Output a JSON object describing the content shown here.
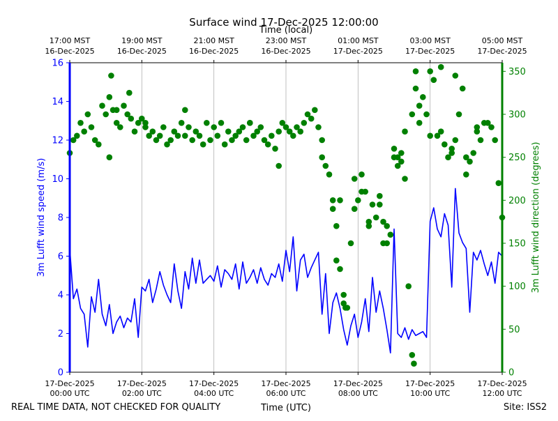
{
  "chart_data": {
    "type": "line+scatter",
    "title": "Surface wind 17-Dec-2025 12:00:00",
    "top_axis_label": "Time (local)",
    "x_label": "Time (UTC)",
    "left_ylabel": "3m Lufft wind speed (m/s)",
    "right_ylabel": "3m Lufft wind direction (degrees)",
    "footer_left": "REAL TIME DATA, NOT CHECKED FOR QUALITY",
    "footer_right": "Site: ISS2",
    "x_range_hours": [
      0,
      12
    ],
    "left_ylim": [
      0,
      16
    ],
    "right_ylim": [
      0,
      360
    ],
    "left_yticks": [
      0,
      2,
      4,
      6,
      8,
      10,
      12,
      14,
      16
    ],
    "right_yticks": [
      0,
      50,
      100,
      150,
      200,
      250,
      300,
      350
    ],
    "bottom_ticks": [
      {
        "hour": 0,
        "line1": "17-Dec-2025",
        "line2": "00:00 UTC"
      },
      {
        "hour": 2,
        "line1": "17-Dec-2025",
        "line2": "02:00 UTC"
      },
      {
        "hour": 4,
        "line1": "17-Dec-2025",
        "line2": "04:00 UTC"
      },
      {
        "hour": 6,
        "line1": "17-Dec-2025",
        "line2": "06:00 UTC"
      },
      {
        "hour": 8,
        "line1": "17-Dec-2025",
        "line2": "08:00 UTC"
      },
      {
        "hour": 10,
        "line1": "17-Dec-2025",
        "line2": "10:00 UTC"
      },
      {
        "hour": 12,
        "line1": "17-Dec-2025",
        "line2": "12:00 UTC"
      }
    ],
    "top_ticks": [
      {
        "hour": 0,
        "line1": "17:00 MST",
        "line2": "16-Dec-2025"
      },
      {
        "hour": 2,
        "line1": "19:00 MST",
        "line2": "16-Dec-2025"
      },
      {
        "hour": 4,
        "line1": "21:00 MST",
        "line2": "16-Dec-2025"
      },
      {
        "hour": 6,
        "line1": "23:00 MST",
        "line2": "16-Dec-2025"
      },
      {
        "hour": 8,
        "line1": "01:00 MST",
        "line2": "17-Dec-2025"
      },
      {
        "hour": 10,
        "line1": "03:00 MST",
        "line2": "17-Dec-2025"
      },
      {
        "hour": 12,
        "line1": "05:00 MST",
        "line2": "17-Dec-2025"
      }
    ],
    "grid": "vertical",
    "colors": {
      "speed": "#0000ff",
      "direction": "#008000",
      "grid": "#b0b0b0",
      "axis": "#000000"
    },
    "series": [
      {
        "name": "wind speed",
        "axis": "left",
        "style": "line",
        "x_hours": [
          0,
          0.1,
          0.2,
          0.3,
          0.4,
          0.5,
          0.6,
          0.7,
          0.8,
          0.9,
          1.0,
          1.1,
          1.2,
          1.3,
          1.4,
          1.5,
          1.6,
          1.7,
          1.8,
          1.9,
          2.0,
          2.1,
          2.2,
          2.3,
          2.4,
          2.5,
          2.6,
          2.7,
          2.8,
          2.9,
          3.0,
          3.1,
          3.2,
          3.3,
          3.4,
          3.5,
          3.6,
          3.7,
          3.8,
          3.9,
          4.0,
          4.1,
          4.2,
          4.3,
          4.4,
          4.5,
          4.6,
          4.7,
          4.8,
          4.9,
          5.0,
          5.1,
          5.2,
          5.3,
          5.4,
          5.5,
          5.6,
          5.7,
          5.8,
          5.9,
          6.0,
          6.1,
          6.2,
          6.3,
          6.4,
          6.5,
          6.6,
          6.7,
          6.8,
          6.9,
          7.0,
          7.1,
          7.2,
          7.3,
          7.4,
          7.5,
          7.6,
          7.7,
          7.8,
          7.9,
          8.0,
          8.1,
          8.2,
          8.3,
          8.4,
          8.5,
          8.6,
          8.7,
          8.8,
          8.9,
          9.0,
          9.1,
          9.2,
          9.3,
          9.4,
          9.5,
          9.6,
          9.7,
          9.8,
          9.9,
          10.0,
          10.1,
          10.2,
          10.3,
          10.4,
          10.5,
          10.6,
          10.7,
          10.8,
          10.9,
          11.0,
          11.1,
          11.2,
          11.3,
          11.4,
          11.5,
          11.6,
          11.7,
          11.8,
          11.9,
          12.0
        ],
        "values": [
          6.4,
          3.8,
          4.3,
          3.3,
          3.0,
          1.3,
          3.9,
          3.1,
          4.8,
          3.0,
          2.4,
          3.5,
          2.0,
          2.6,
          2.9,
          2.3,
          2.8,
          2.6,
          3.8,
          1.8,
          4.4,
          4.2,
          4.8,
          3.6,
          4.3,
          5.2,
          4.5,
          4.0,
          3.6,
          5.6,
          4.2,
          3.3,
          5.2,
          4.3,
          5.9,
          4.6,
          5.8,
          4.6,
          4.8,
          5.0,
          4.7,
          5.5,
          4.4,
          5.3,
          5.1,
          4.8,
          5.6,
          4.3,
          5.7,
          4.6,
          4.9,
          5.3,
          4.6,
          5.4,
          4.8,
          4.5,
          5.1,
          4.9,
          5.6,
          4.7,
          6.3,
          5.2,
          7.0,
          4.2,
          5.8,
          6.1,
          4.9,
          5.4,
          5.8,
          6.2,
          3.0,
          5.1,
          2.0,
          3.6,
          4.1,
          3.3,
          2.2,
          1.4,
          2.4,
          3.0,
          1.8,
          2.6,
          3.8,
          2.1,
          4.9,
          3.1,
          4.2,
          3.3,
          2.2,
          1.0,
          7.4,
          2.0,
          1.8,
          2.3,
          1.7,
          2.2,
          1.9,
          2.0,
          2.1,
          1.8,
          7.8,
          8.5,
          7.4,
          7.0,
          8.2,
          7.6,
          4.4,
          9.5,
          7.2,
          6.7,
          6.4,
          3.1,
          6.2,
          5.8,
          6.3,
          5.6,
          5.0,
          5.7,
          4.6,
          6.2,
          6.0
        ]
      },
      {
        "name": "wind direction",
        "axis": "right",
        "style": "markers",
        "x_hours": [
          0,
          0.1,
          0.2,
          0.3,
          0.4,
          0.5,
          0.6,
          0.7,
          0.8,
          0.9,
          1.0,
          1.1,
          1.2,
          1.3,
          1.4,
          1.5,
          1.6,
          1.7,
          1.8,
          1.9,
          2.0,
          2.1,
          2.2,
          2.3,
          2.4,
          2.5,
          2.6,
          2.7,
          2.8,
          2.9,
          3.0,
          3.1,
          3.2,
          3.3,
          3.4,
          3.5,
          3.6,
          3.7,
          3.8,
          3.9,
          4.0,
          4.1,
          4.2,
          4.3,
          4.4,
          4.5,
          4.6,
          4.7,
          4.8,
          4.9,
          5.0,
          5.1,
          5.2,
          5.3,
          5.4,
          5.5,
          5.6,
          5.7,
          5.8,
          5.9,
          6.0,
          6.1,
          6.2,
          6.3,
          6.4,
          6.5,
          6.6,
          6.7,
          6.8,
          6.9,
          7.0,
          7.1,
          7.2,
          7.3,
          7.4,
          7.5,
          7.6,
          7.7,
          7.8,
          7.9,
          8.0,
          8.1,
          8.2,
          8.3,
          8.4,
          8.5,
          8.6,
          8.7,
          8.8,
          8.9,
          9.0,
          9.1,
          9.2,
          9.3,
          9.4,
          9.5,
          9.6,
          9.7,
          9.8,
          9.9,
          10.0,
          10.1,
          10.2,
          10.3,
          10.4,
          10.5,
          10.6,
          10.7,
          10.8,
          10.9,
          11.0,
          11.1,
          11.2,
          11.3,
          11.4,
          11.5,
          11.6,
          11.7,
          11.8,
          11.9,
          12.0
        ],
        "values": [
          255,
          270,
          275,
          290,
          280,
          300,
          285,
          270,
          265,
          310,
          300,
          320,
          305,
          290,
          285,
          310,
          300,
          295,
          280,
          290,
          295,
          285,
          275,
          280,
          270,
          275,
          285,
          265,
          270,
          280,
          275,
          290,
          275,
          285,
          270,
          280,
          275,
          265,
          290,
          270,
          285,
          275,
          290,
          265,
          280,
          270,
          275,
          280,
          285,
          270,
          290,
          275,
          280,
          285,
          270,
          265,
          275,
          260,
          280,
          290,
          285,
          280,
          275,
          285,
          280,
          290,
          300,
          295,
          305,
          285,
          250,
          240,
          230,
          200,
          170,
          120,
          90,
          75,
          150,
          190,
          200,
          230,
          210,
          175,
          195,
          180,
          205,
          150,
          170,
          160,
          260,
          250,
          255,
          280,
          100,
          300,
          330,
          310,
          320,
          300,
          350,
          340,
          275,
          280,
          265,
          250,
          260,
          270,
          300,
          330,
          250,
          245,
          255,
          280,
          270,
          290,
          290,
          285,
          270,
          220,
          180
        ]
      },
      {
        "name": "wind direction (scattered points)",
        "axis": "right",
        "style": "markers",
        "x_hours": [
          1.15,
          1.3,
          1.1,
          1.65,
          2.1,
          3.2,
          5.0,
          5.8,
          7.0,
          7.3,
          7.4,
          7.5,
          7.6,
          7.65,
          7.9,
          8.1,
          8.3,
          8.6,
          8.7,
          8.8,
          9.0,
          9.1,
          9.2,
          9.3,
          9.5,
          9.55,
          9.6,
          9.7,
          10.0,
          10.3,
          10.6,
          10.7,
          11.0,
          11.3
        ],
        "values": [
          345,
          305,
          250,
          325,
          290,
          305,
          290,
          240,
          270,
          190,
          130,
          200,
          80,
          75,
          225,
          210,
          170,
          195,
          175,
          150,
          250,
          240,
          245,
          225,
          20,
          10,
          350,
          290,
          275,
          355,
          255,
          345,
          230,
          285
        ]
      }
    ]
  }
}
